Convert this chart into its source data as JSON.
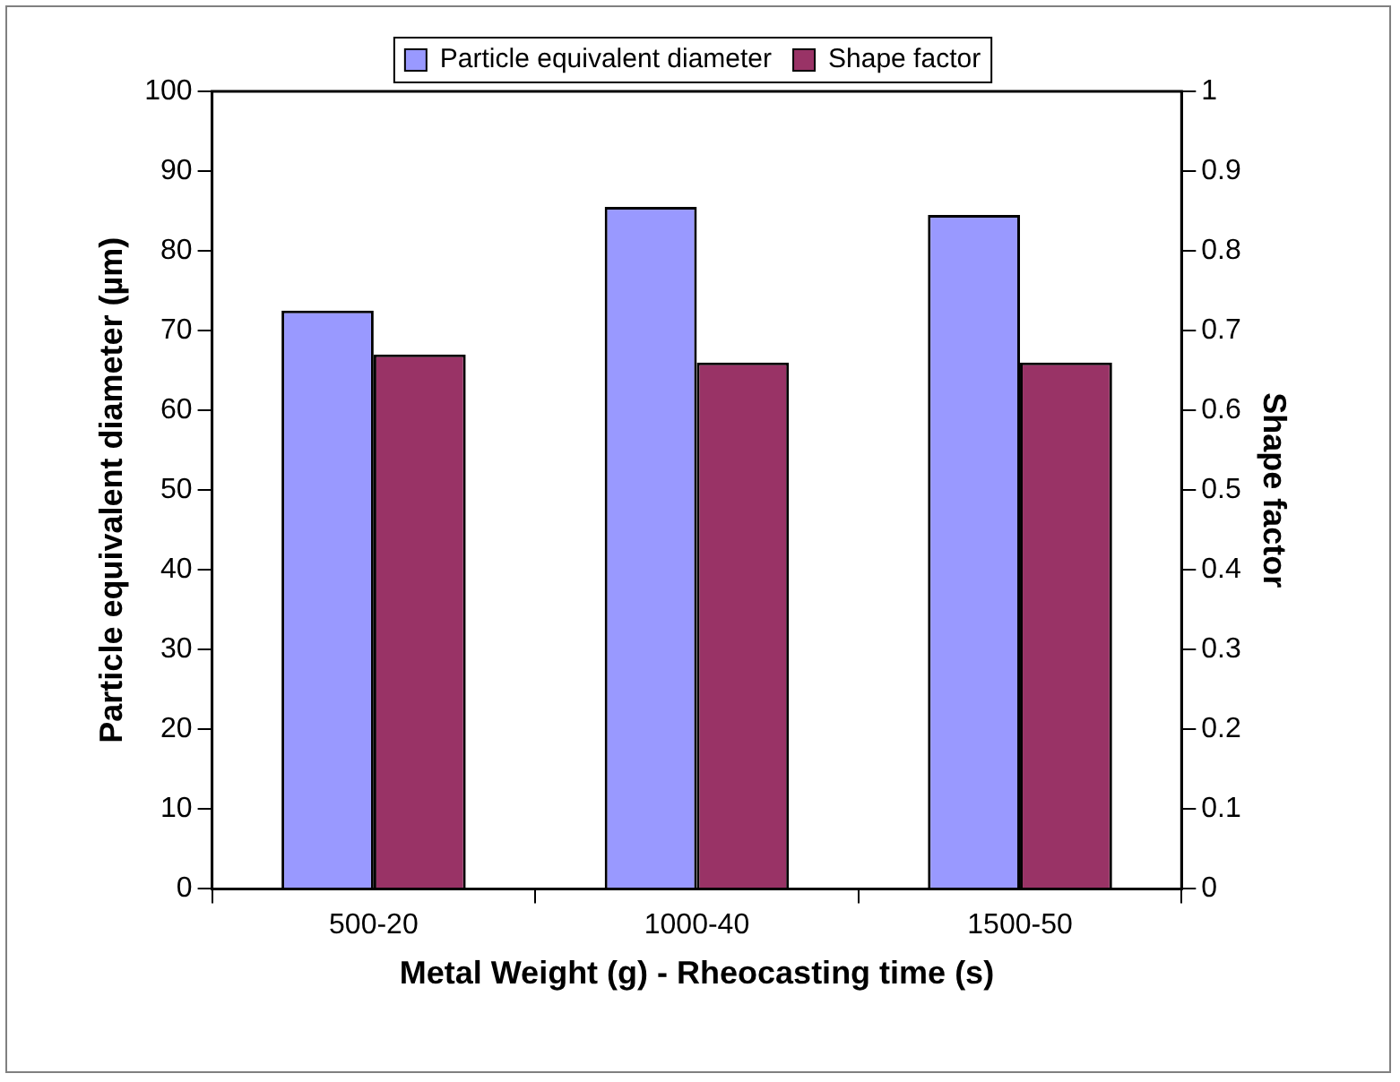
{
  "chart_data": {
    "type": "bar",
    "xlabel": "Metal Weight (g) - Rheocasting time (s)",
    "ylabel": "Particle equivalent diameter (µm)",
    "y2label": "Shape factor",
    "categories": [
      "500-20",
      "1000-40",
      "1500-50"
    ],
    "series": [
      {
        "name": "Particle equivalent diameter",
        "color": "#9999ff",
        "values": [
          72.5,
          85.5,
          84.5
        ]
      },
      {
        "name": "Shape factor",
        "color": "#993366",
        "axis": "y2",
        "values": [
          0.67,
          0.66,
          0.66
        ]
      }
    ],
    "ylim": [
      0,
      100
    ],
    "yticks": [
      0,
      10,
      20,
      30,
      40,
      50,
      60,
      70,
      80,
      90,
      100
    ],
    "y2lim": [
      0,
      1
    ],
    "y2ticks": [
      0,
      0.1,
      0.2,
      0.3,
      0.4,
      0.5,
      0.6,
      0.7,
      0.8,
      0.9,
      1
    ],
    "grid": false,
    "legend": "top"
  }
}
